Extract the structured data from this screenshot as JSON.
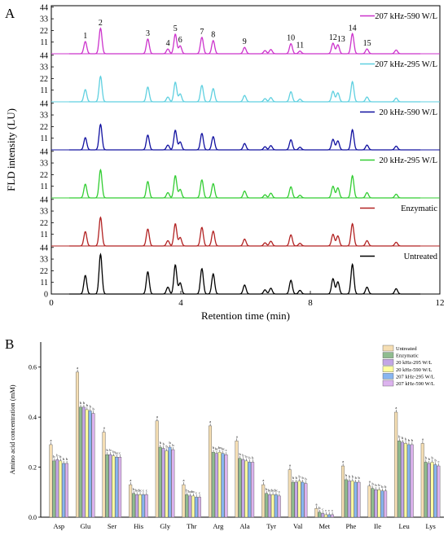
{
  "panels": {
    "a": {
      "letter": "A"
    },
    "b": {
      "letter": "B"
    }
  },
  "colors": {
    "untreated": "#000000",
    "enzymatic": "#b22222",
    "20kHz295": "#32cd32",
    "20kHz590": "#1010a0",
    "207kHz295": "#5fd0e0",
    "207kHz590": "#cc33cc"
  },
  "chart_data": [
    {
      "type": "line",
      "panel": "A",
      "xlabel": "Retention time (min)",
      "ylabel": "FLD intensity (LU)",
      "xlim": [
        0,
        12
      ],
      "xticks": [
        0,
        4,
        8,
        12
      ],
      "stacked_offsets": true,
      "yticks_each_trace": [
        "0",
        "11",
        "22",
        "33",
        "44"
      ],
      "series": [
        {
          "name": "Untreated",
          "color": "#000000",
          "peak_heights": [
            17.5,
            37.5,
            21,
            6.5,
            27.5,
            10.5,
            24,
            19,
            8.5,
            4,
            5.5,
            13,
            3.5,
            14.5,
            11.5,
            28,
            6.5,
            5
          ]
        },
        {
          "name": "Enzymatic",
          "color": "#b22222",
          "peak_heights": [
            13.5,
            27,
            16,
            5,
            21,
            8,
            17.5,
            14,
            6.5,
            3,
            4.5,
            10.5,
            2.5,
            11,
            9.5,
            21,
            5,
            3.5
          ]
        },
        {
          "name": "20 kHz-295 W/L",
          "color": "#32cd32",
          "peak_heights": [
            13,
            26.5,
            15.5,
            5,
            21,
            8,
            17,
            13.5,
            6.5,
            3,
            4.5,
            10.5,
            2.5,
            11,
            9.5,
            21,
            5,
            3.5
          ]
        },
        {
          "name": "20 kHz-590 W/L",
          "color": "#1010a0",
          "peak_heights": [
            11.5,
            24,
            14,
            4.5,
            18.5,
            7.5,
            15.5,
            12.5,
            6,
            3,
            4,
            9.5,
            2.5,
            10,
            8.5,
            19,
            4.5,
            3.5
          ]
        },
        {
          "name": "207 kHz-295 W/L",
          "color": "#5fd0e0",
          "peak_heights": [
            11.5,
            24,
            14,
            4.5,
            18.5,
            7.5,
            15.5,
            12.5,
            6,
            3,
            4,
            9.5,
            2.5,
            10,
            8.5,
            19,
            4.5,
            3.5
          ]
        },
        {
          "name": "207 kHz-590 W/L",
          "color": "#cc33cc",
          "peak_heights": [
            11.5,
            24,
            14,
            4.5,
            18.5,
            7.5,
            15.5,
            12.5,
            6,
            3,
            4,
            9.5,
            2.5,
            10,
            8.5,
            19,
            4.5,
            3.5
          ]
        }
      ],
      "peak_times": [
        1.05,
        1.52,
        2.98,
        3.6,
        3.83,
        3.98,
        4.65,
        5.0,
        5.97,
        6.6,
        6.78,
        7.4,
        7.68,
        8.7,
        8.85,
        9.3,
        9.75,
        10.65
      ],
      "peak_labels": [
        {
          "text": "1",
          "t": 1.05
        },
        {
          "text": "2",
          "t": 1.52
        },
        {
          "text": "3",
          "t": 2.98
        },
        {
          "text": "4",
          "t": 3.6
        },
        {
          "text": "5",
          "t": 3.83
        },
        {
          "text": "6",
          "t": 3.98
        },
        {
          "text": "7",
          "t": 4.65
        },
        {
          "text": "8",
          "t": 5.0
        },
        {
          "text": "9",
          "t": 5.97
        },
        {
          "text": "10",
          "t": 7.4
        },
        {
          "text": "11",
          "t": 7.68
        },
        {
          "text": "12",
          "t": 8.7
        },
        {
          "text": "13",
          "t": 8.95
        },
        {
          "text": "14",
          "t": 9.3
        },
        {
          "text": "15",
          "t": 9.75
        }
      ]
    },
    {
      "type": "bar",
      "panel": "B",
      "xlabel": "",
      "ylabel": "Amino acid concentration (mM)",
      "ylim": [
        0,
        0.7
      ],
      "yticks": [
        "0.0",
        "0.2",
        "0.4",
        "0.6"
      ],
      "categories": [
        "Asp",
        "Glu",
        "Ser",
        "His",
        "Gly",
        "Thr",
        "Arg",
        "Ala",
        "Tyr",
        "Val",
        "Met",
        "Phe",
        "Ile",
        "Leu",
        "Lys"
      ],
      "legend_position": "top-right",
      "series": [
        {
          "name": "Untreated",
          "color": "#f5deb3",
          "values": [
            0.29,
            0.58,
            0.34,
            0.13,
            0.385,
            0.13,
            0.365,
            0.305,
            0.13,
            0.19,
            0.035,
            0.205,
            0.125,
            0.42,
            0.295
          ]
        },
        {
          "name": "Enzymatic",
          "color": "#8fbc8f",
          "values": [
            0.225,
            0.44,
            0.25,
            0.095,
            0.28,
            0.09,
            0.26,
            0.235,
            0.095,
            0.14,
            0.02,
            0.15,
            0.115,
            0.305,
            0.22
          ]
        },
        {
          "name": "20 kHz-295 W/L",
          "color": "#c3a6e6",
          "values": [
            0.23,
            0.44,
            0.25,
            0.09,
            0.275,
            0.085,
            0.255,
            0.23,
            0.09,
            0.14,
            0.015,
            0.145,
            0.11,
            0.3,
            0.215
          ]
        },
        {
          "name": "20 kHz-590 W/L",
          "color": "#ffffa0",
          "values": [
            0.225,
            0.43,
            0.245,
            0.09,
            0.265,
            0.085,
            0.26,
            0.225,
            0.09,
            0.145,
            0.01,
            0.145,
            0.11,
            0.295,
            0.22
          ]
        },
        {
          "name": "207 kHz-295 W/L",
          "color": "#87b5f0",
          "values": [
            0.215,
            0.425,
            0.24,
            0.09,
            0.28,
            0.08,
            0.255,
            0.22,
            0.09,
            0.14,
            0.01,
            0.14,
            0.105,
            0.29,
            0.21
          ]
        },
        {
          "name": "207 kHz-590 W/L",
          "color": "#dcb3ee",
          "values": [
            0.215,
            0.415,
            0.24,
            0.09,
            0.27,
            0.08,
            0.25,
            0.22,
            0.085,
            0.135,
            0.01,
            0.14,
            0.105,
            0.29,
            0.205
          ]
        }
      ],
      "significance_letters": [
        [
          "a",
          "b",
          "b",
          "b",
          "b",
          "b"
        ],
        [
          "a",
          "b",
          "b",
          "b",
          "b",
          "b"
        ],
        [
          "a",
          "b",
          "b",
          "b",
          "bc",
          "c"
        ],
        [
          "a",
          "b",
          "bc",
          "bc",
          "c",
          "c"
        ],
        [
          "a",
          "b",
          "b",
          "b",
          "b",
          "b"
        ],
        [
          "a",
          "b",
          "bc",
          "bc",
          "c",
          "c"
        ],
        [
          "a",
          "b",
          "bc",
          "bc",
          "bc",
          "c"
        ],
        [
          "a",
          "b",
          "b",
          "b",
          "b",
          "b"
        ],
        [
          "a",
          "b",
          "bc",
          "bc",
          "bc",
          "c"
        ],
        [
          "a",
          "b",
          "b",
          "b",
          "b",
          "b"
        ],
        [
          "a",
          "b",
          "c",
          "c",
          "c",
          "c"
        ],
        [
          "a",
          "b",
          "b",
          "b",
          "b",
          "b"
        ],
        [
          "a",
          "b",
          "b",
          "b",
          "b",
          "b"
        ],
        [
          "a",
          "b",
          "b",
          "b",
          "b",
          "b"
        ],
        [
          "a",
          "b",
          "b",
          "b",
          "b",
          "c"
        ]
      ]
    }
  ]
}
